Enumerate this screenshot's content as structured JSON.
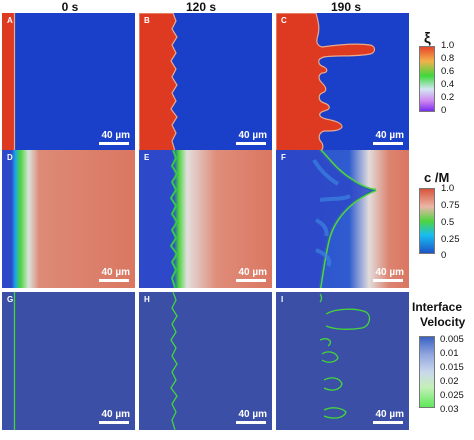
{
  "columns": [
    "0 s",
    "120 s",
    "190 s"
  ],
  "panel_labels": [
    "A",
    "B",
    "C",
    "D",
    "E",
    "F",
    "G",
    "H",
    "I"
  ],
  "scale_bar_label": "40 µm",
  "legends": {
    "xi": {
      "title": "ξ",
      "ticks": [
        "1.0",
        "0.8",
        "0.6",
        "0.4",
        "0.2",
        "0"
      ],
      "colors": [
        "#e8462a",
        "#f3b14c",
        "#3fd83c",
        "#d2e6f3",
        "#cf88ef",
        "#7b2ef0"
      ]
    },
    "conc": {
      "title": "c /M",
      "ticks": [
        "1.0",
        "0.75",
        "0.5",
        "0.25",
        "0"
      ],
      "colors": [
        "#d8543c",
        "#ebb7a8",
        "#4ed53e",
        "#18bdf2",
        "#1e54c6"
      ]
    },
    "velocity": {
      "title_line1": "Interface",
      "title_line2": "Velocity",
      "ticks": [
        "0.005",
        "0.01",
        "0.015",
        "0.02",
        "0.025",
        "0.03"
      ],
      "colors": [
        "#3a62c4",
        "#91a6df",
        "#c9d8ec",
        "#c4f0b8",
        "#5fe85a"
      ]
    },
    "colors": {
      "xi_blue": "#1a3fc8",
      "xi_red": "#de3a22",
      "conc_bulk": "#da7762",
      "conc_low": "#2d48c8",
      "vel_bg": "#3b4fa6",
      "vel_line": "#43d63a"
    }
  }
}
